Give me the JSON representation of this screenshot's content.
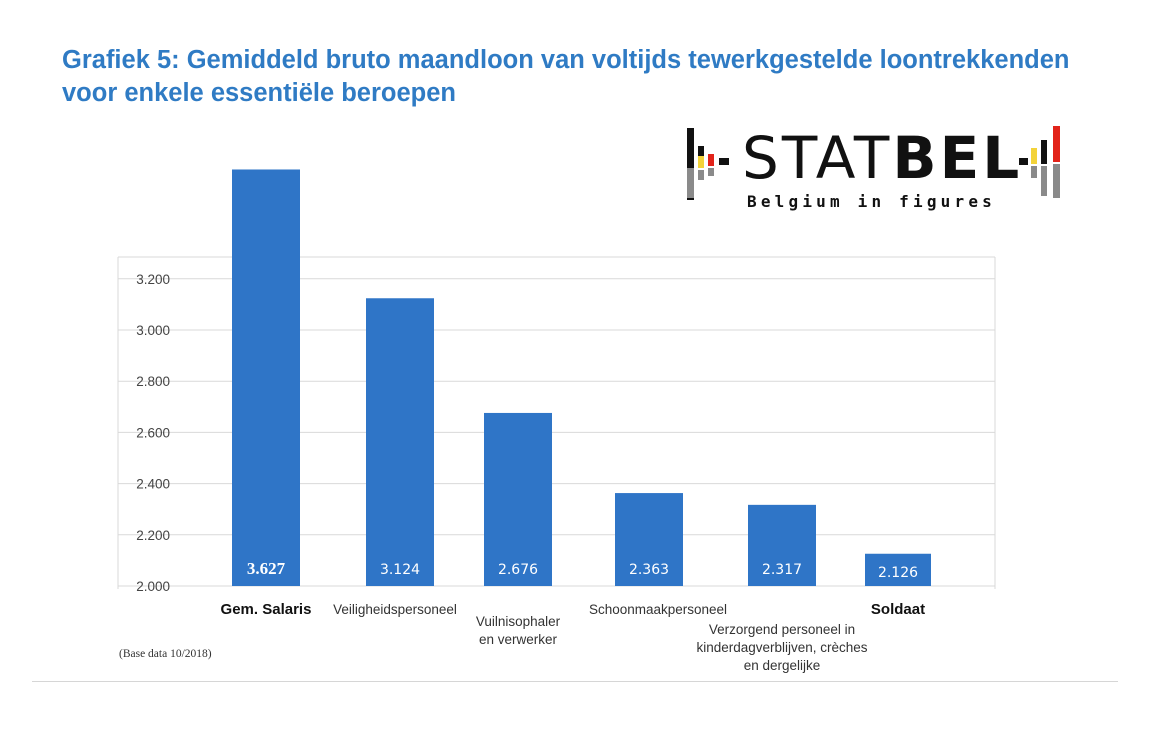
{
  "title_line1": "Grafiek 5: Gemiddeld bruto maandloon van voltijds tewerkgestelde loontrekkenden",
  "title_line2": "voor enkele essentiële beroepen",
  "logo": {
    "name_light": "STAT",
    "name_bold": "BEL",
    "tagline": "Belgium in figures",
    "colors": {
      "black": "#111111",
      "yellow": "#f3d33a",
      "red": "#e2231a",
      "grey": "#8a8a8a"
    }
  },
  "source_note": "(Base data 10/2018)",
  "colors": {
    "title": "#2f7bc4",
    "bar": "#2f75c7",
    "grid": "#d9d9d9"
  },
  "chart_data": {
    "type": "bar",
    "categories": [
      [
        "Gem. Salaris"
      ],
      [
        "Veiligheidspersoneel"
      ],
      [
        "Vuilnisophaler",
        "en verwerker"
      ],
      [
        "Schoonmaakpersoneel"
      ],
      [
        "Verzorgend personeel in",
        "kinderdagverblijven, crèches",
        "en dergelijke"
      ],
      [
        "Soldaat"
      ]
    ],
    "values": [
      3627,
      3124,
      2676,
      2363,
      2317,
      2126
    ],
    "value_labels": [
      "3.627",
      "3.124",
      "2.676",
      "2.363",
      "2.317",
      "2.126"
    ],
    "yticks": [
      "2.000",
      "2.200",
      "2.400",
      "2.600",
      "2.800",
      "3.000",
      "3.200"
    ],
    "ylim": [
      2000,
      3330
    ],
    "grid": true
  }
}
